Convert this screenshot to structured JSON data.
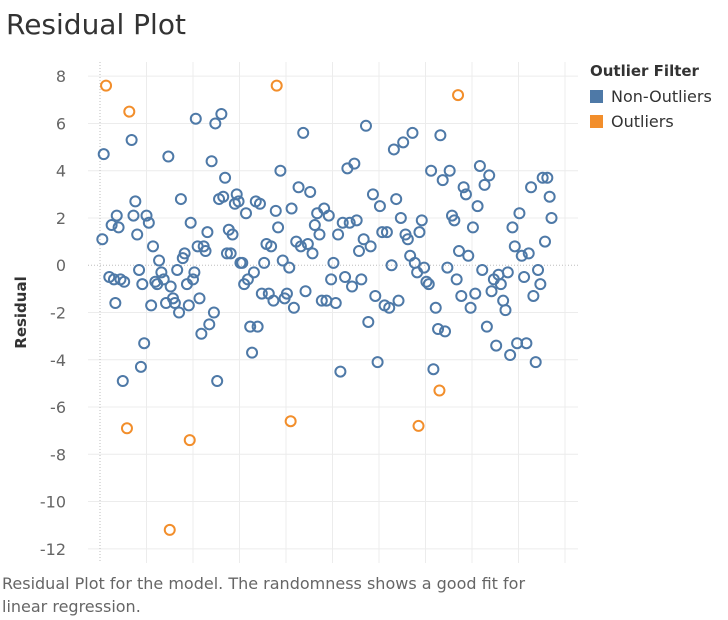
{
  "header": {
    "title": "Residual Plot"
  },
  "caption": "Residual Plot for the model. The randomness shows a good fit for linear regression.",
  "legend": {
    "title": "Outlier Filter",
    "items": [
      {
        "label": "Non-Outliers",
        "color": "#4e79a7"
      },
      {
        "label": "Outliers",
        "color": "#f28e2b"
      }
    ]
  },
  "chart_data": {
    "type": "scatter",
    "title": "Residual Plot",
    "xlabel": "",
    "ylabel": "Residual",
    "ylim": [
      -12.6,
      8.6
    ],
    "xlim": [
      0,
      100
    ],
    "yticks": [
      8,
      6,
      4,
      2,
      0,
      -2,
      -4,
      -6,
      -8,
      -10,
      -12
    ],
    "x_tick_count": 10,
    "grid": true,
    "zero_line": true,
    "legend_position": "top-right",
    "series": [
      {
        "name": "Non-Outliers",
        "color": "#4e79a7",
        "points": [
          [
            0.5,
            1.1
          ],
          [
            0.8,
            4.7
          ],
          [
            2.0,
            -0.5
          ],
          [
            2.5,
            1.7
          ],
          [
            3.0,
            -0.6
          ],
          [
            3.3,
            -1.6
          ],
          [
            3.6,
            2.1
          ],
          [
            4.0,
            1.6
          ],
          [
            4.4,
            -0.6
          ],
          [
            4.9,
            -4.9
          ],
          [
            5.2,
            -0.7
          ],
          [
            6.8,
            5.3
          ],
          [
            7.2,
            2.1
          ],
          [
            7.6,
            2.7
          ],
          [
            8.0,
            1.3
          ],
          [
            8.4,
            -0.2
          ],
          [
            8.8,
            -4.3
          ],
          [
            9.1,
            -0.8
          ],
          [
            9.5,
            -3.3
          ],
          [
            10.0,
            2.1
          ],
          [
            10.5,
            1.8
          ],
          [
            11.0,
            -1.7
          ],
          [
            11.4,
            0.8
          ],
          [
            11.9,
            -0.7
          ],
          [
            12.3,
            -0.8
          ],
          [
            12.7,
            0.2
          ],
          [
            13.2,
            -0.3
          ],
          [
            13.7,
            -0.6
          ],
          [
            14.2,
            -1.6
          ],
          [
            14.7,
            4.6
          ],
          [
            15.2,
            -0.9
          ],
          [
            15.7,
            -1.4
          ],
          [
            16.1,
            -1.6
          ],
          [
            16.6,
            -0.2
          ],
          [
            17.0,
            -2.0
          ],
          [
            17.4,
            2.8
          ],
          [
            17.8,
            0.3
          ],
          [
            18.2,
            0.5
          ],
          [
            18.7,
            -0.8
          ],
          [
            19.1,
            -1.7
          ],
          [
            19.5,
            1.8
          ],
          [
            20.0,
            -0.6
          ],
          [
            20.3,
            -0.3
          ],
          [
            20.6,
            6.2
          ],
          [
            21.0,
            0.8
          ],
          [
            21.4,
            -1.4
          ],
          [
            21.8,
            -2.9
          ],
          [
            22.3,
            0.8
          ],
          [
            22.7,
            0.6
          ],
          [
            23.1,
            1.4
          ],
          [
            23.5,
            -2.5
          ],
          [
            24.0,
            4.4
          ],
          [
            24.5,
            -2.0
          ],
          [
            24.8,
            6.0
          ],
          [
            25.2,
            -4.9
          ],
          [
            25.6,
            2.8
          ],
          [
            26.1,
            6.4
          ],
          [
            26.5,
            2.9
          ],
          [
            26.9,
            3.7
          ],
          [
            27.3,
            0.5
          ],
          [
            27.7,
            1.5
          ],
          [
            28.1,
            0.5
          ],
          [
            28.5,
            1.3
          ],
          [
            29.0,
            2.6
          ],
          [
            29.4,
            3.0
          ],
          [
            29.8,
            2.7
          ],
          [
            30.2,
            0.1
          ],
          [
            30.6,
            0.1
          ],
          [
            31.0,
            -0.8
          ],
          [
            31.4,
            2.2
          ],
          [
            31.8,
            -0.6
          ],
          [
            32.3,
            -2.6
          ],
          [
            32.7,
            -3.7
          ],
          [
            33.1,
            -0.3
          ],
          [
            33.5,
            2.7
          ],
          [
            33.9,
            -2.6
          ],
          [
            34.4,
            2.6
          ],
          [
            34.8,
            -1.2
          ],
          [
            35.3,
            0.1
          ],
          [
            35.8,
            0.9
          ],
          [
            36.3,
            -1.2
          ],
          [
            36.8,
            0.8
          ],
          [
            37.3,
            -1.5
          ],
          [
            37.8,
            2.3
          ],
          [
            38.3,
            1.6
          ],
          [
            38.8,
            4.0
          ],
          [
            39.3,
            0.2
          ],
          [
            39.7,
            -1.4
          ],
          [
            40.2,
            -1.2
          ],
          [
            40.7,
            -0.1
          ],
          [
            41.2,
            2.4
          ],
          [
            41.7,
            -1.8
          ],
          [
            42.2,
            1.0
          ],
          [
            42.7,
            3.3
          ],
          [
            43.2,
            0.8
          ],
          [
            43.7,
            5.6
          ],
          [
            44.2,
            -1.1
          ],
          [
            44.7,
            0.9
          ],
          [
            45.2,
            3.1
          ],
          [
            45.7,
            0.5
          ],
          [
            46.2,
            1.7
          ],
          [
            46.7,
            2.2
          ],
          [
            47.2,
            1.3
          ],
          [
            47.7,
            -1.5
          ],
          [
            48.2,
            2.4
          ],
          [
            48.7,
            -1.5
          ],
          [
            49.2,
            2.1
          ],
          [
            49.7,
            -0.6
          ],
          [
            50.2,
            0.1
          ],
          [
            50.7,
            -1.6
          ],
          [
            51.2,
            1.3
          ],
          [
            51.7,
            -4.5
          ],
          [
            52.2,
            1.8
          ],
          [
            52.7,
            -0.5
          ],
          [
            53.2,
            4.1
          ],
          [
            53.7,
            1.8
          ],
          [
            54.2,
            -0.9
          ],
          [
            54.7,
            4.3
          ],
          [
            55.2,
            1.9
          ],
          [
            55.7,
            0.6
          ],
          [
            56.2,
            -0.6
          ],
          [
            56.7,
            1.1
          ],
          [
            57.2,
            5.9
          ],
          [
            57.7,
            -2.4
          ],
          [
            58.2,
            0.8
          ],
          [
            58.7,
            3.0
          ],
          [
            59.2,
            -1.3
          ],
          [
            59.7,
            -4.1
          ],
          [
            60.2,
            2.5
          ],
          [
            60.7,
            1.4
          ],
          [
            61.2,
            -1.7
          ],
          [
            61.7,
            1.4
          ],
          [
            62.2,
            -1.8
          ],
          [
            62.7,
            0.0
          ],
          [
            63.2,
            4.9
          ],
          [
            63.7,
            2.8
          ],
          [
            64.2,
            -1.5
          ],
          [
            64.7,
            2.0
          ],
          [
            65.2,
            5.2
          ],
          [
            65.7,
            1.3
          ],
          [
            66.2,
            1.1
          ],
          [
            66.7,
            0.4
          ],
          [
            67.2,
            5.6
          ],
          [
            67.7,
            0.1
          ],
          [
            68.2,
            -0.3
          ],
          [
            68.7,
            1.4
          ],
          [
            69.2,
            1.9
          ],
          [
            69.7,
            -0.1
          ],
          [
            70.2,
            -0.7
          ],
          [
            70.7,
            -0.8
          ],
          [
            71.2,
            4.0
          ],
          [
            71.7,
            -4.4
          ],
          [
            72.2,
            -1.8
          ],
          [
            72.7,
            -2.7
          ],
          [
            73.2,
            5.5
          ],
          [
            73.7,
            3.6
          ],
          [
            74.2,
            -2.8
          ],
          [
            74.7,
            -0.1
          ],
          [
            75.2,
            4.0
          ],
          [
            75.7,
            2.1
          ],
          [
            76.2,
            1.9
          ],
          [
            76.7,
            -0.6
          ],
          [
            77.2,
            0.6
          ],
          [
            77.7,
            -1.3
          ],
          [
            78.2,
            3.3
          ],
          [
            78.7,
            3.0
          ],
          [
            79.2,
            0.4
          ],
          [
            79.7,
            -1.8
          ],
          [
            80.2,
            1.6
          ],
          [
            80.7,
            -1.2
          ],
          [
            81.2,
            2.5
          ],
          [
            81.7,
            4.2
          ],
          [
            82.2,
            -0.2
          ],
          [
            82.7,
            3.4
          ],
          [
            83.2,
            -2.6
          ],
          [
            83.7,
            3.8
          ],
          [
            84.2,
            -1.1
          ],
          [
            84.7,
            -0.6
          ],
          [
            85.2,
            -3.4
          ],
          [
            85.7,
            -0.4
          ],
          [
            86.2,
            -0.8
          ],
          [
            86.7,
            -1.5
          ],
          [
            87.2,
            -1.9
          ],
          [
            87.7,
            -0.3
          ],
          [
            88.2,
            -3.8
          ],
          [
            88.7,
            1.6
          ],
          [
            89.2,
            0.8
          ],
          [
            89.7,
            -3.3
          ],
          [
            90.2,
            2.2
          ],
          [
            90.7,
            0.4
          ],
          [
            91.2,
            -0.5
          ],
          [
            91.7,
            -3.3
          ],
          [
            92.2,
            0.5
          ],
          [
            92.7,
            3.3
          ],
          [
            93.2,
            -1.3
          ],
          [
            93.7,
            -4.1
          ],
          [
            94.2,
            -0.2
          ],
          [
            94.7,
            -0.8
          ],
          [
            95.2,
            3.7
          ],
          [
            95.7,
            1.0
          ],
          [
            96.2,
            3.7
          ],
          [
            96.7,
            2.9
          ],
          [
            97.1,
            2.0
          ]
        ]
      },
      {
        "name": "Outliers",
        "color": "#f28e2b",
        "points": [
          [
            1.3,
            7.6
          ],
          [
            5.8,
            -6.9
          ],
          [
            6.3,
            6.5
          ],
          [
            15.0,
            -11.2
          ],
          [
            19.3,
            -7.4
          ],
          [
            38.0,
            7.6
          ],
          [
            41.0,
            -6.6
          ],
          [
            68.5,
            -6.8
          ],
          [
            73.0,
            -5.3
          ],
          [
            77.0,
            7.2
          ]
        ]
      }
    ]
  }
}
